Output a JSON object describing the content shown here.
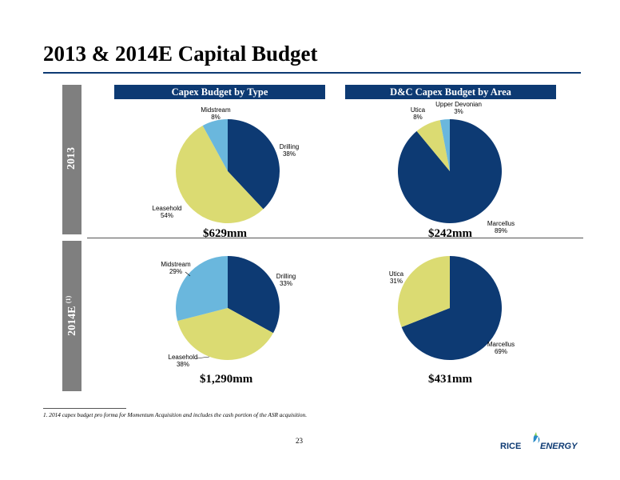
{
  "page": {
    "title": "2013 & 2014E Capital Budget",
    "row_labels": {
      "2013": "2013",
      "2014": "2014E",
      "2014_sup": "(1)"
    },
    "footnote": "1. 2014 capex budget pro forma for Momentum Acquisition and includes the cash portion of the ASR acquisition.",
    "page_number": "23",
    "logo": {
      "text_left": "RICE",
      "text_right": "ENERGY"
    }
  },
  "headers": {
    "type": "Capex Budget by Type",
    "area": "D&C Capex Budget by Area"
  },
  "colors": {
    "navy": "#0d3a73",
    "yellow": "#dbdb72",
    "lightblue": "#6ab7dd",
    "gray": "#7f7f7f"
  },
  "chart_data": [
    {
      "type": "pie",
      "title": "$629mm",
      "slices": [
        {
          "label": "Drilling",
          "value": 38,
          "display": "38%"
        },
        {
          "label": "Leasehold",
          "value": 54,
          "display": "54%"
        },
        {
          "label": "Midstream",
          "value": 8,
          "display": "8%"
        }
      ]
    },
    {
      "type": "pie",
      "title": "$242mm",
      "slices": [
        {
          "label": "Marcellus",
          "value": 89,
          "display": "89%"
        },
        {
          "label": "Utica",
          "value": 8,
          "display": "8%"
        },
        {
          "label": "Upper Devonian",
          "value": 3,
          "display": "3%"
        }
      ]
    },
    {
      "type": "pie",
      "title": "$1,290mm",
      "slices": [
        {
          "label": "Drilling",
          "value": 33,
          "display": "33%"
        },
        {
          "label": "Leasehold",
          "value": 38,
          "display": "38%"
        },
        {
          "label": "Midstream",
          "value": 29,
          "display": "29%"
        }
      ]
    },
    {
      "type": "pie",
      "title": "$431mm",
      "slices": [
        {
          "label": "Marcellus",
          "value": 69,
          "display": "69%"
        },
        {
          "label": "Utica",
          "value": 31,
          "display": "31%"
        }
      ]
    }
  ]
}
